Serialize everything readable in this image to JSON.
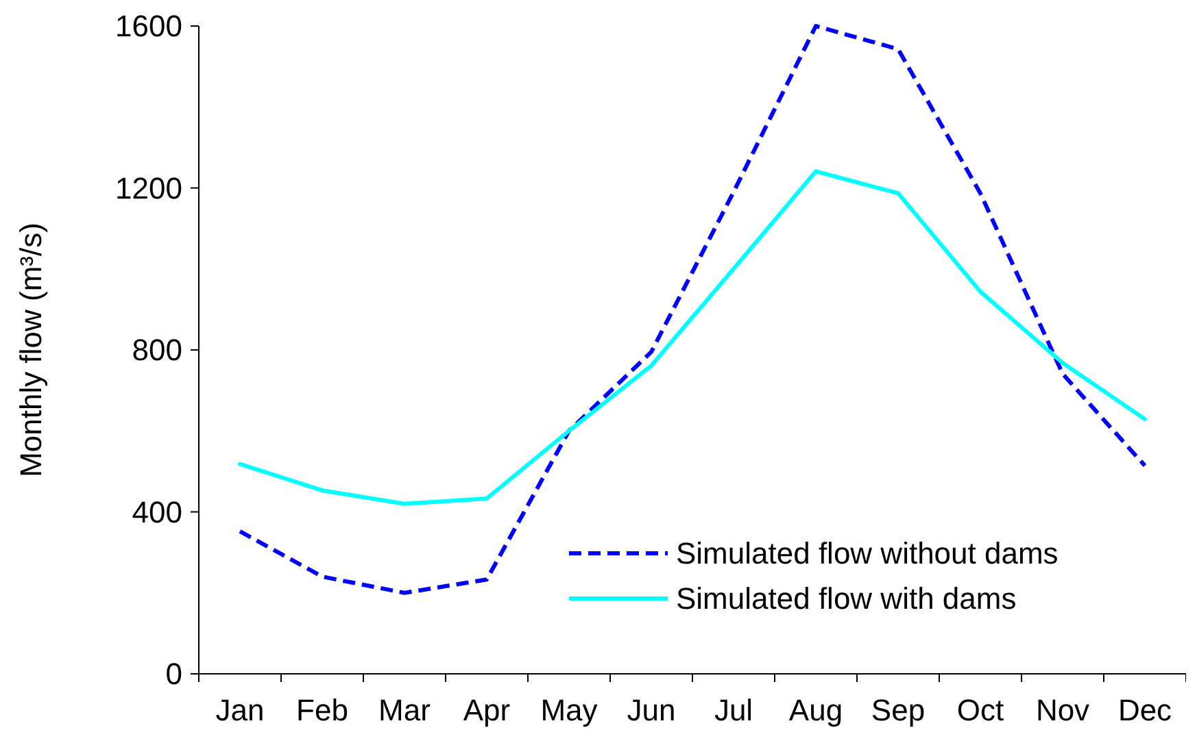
{
  "chart_data": {
    "type": "line",
    "ylabel": "Monthly flow (m³/s)",
    "categories": [
      "Jan",
      "Feb",
      "Mar",
      "Apr",
      "May",
      "Jun",
      "Jul",
      "Aug",
      "Sep",
      "Oct",
      "Nov",
      "Dec"
    ],
    "ylim": [
      0,
      1600
    ],
    "yticks": [
      0,
      400,
      800,
      1200,
      1600
    ],
    "grid": false,
    "legend": "bottom right",
    "series": [
      {
        "name": "Simulated flow without dams",
        "color": "#0000ff",
        "line_style": "dashed",
        "values": [
          352,
          240,
          200,
          233,
          600,
          795,
          1190,
          1600,
          1543,
          1187,
          741,
          514
        ]
      },
      {
        "name": "Simulated flow with dams",
        "color": "#00ffff",
        "line_style": "solid",
        "values": [
          518,
          453,
          420,
          433,
          600,
          761,
          1000,
          1241,
          1187,
          944,
          768,
          629
        ]
      }
    ]
  }
}
